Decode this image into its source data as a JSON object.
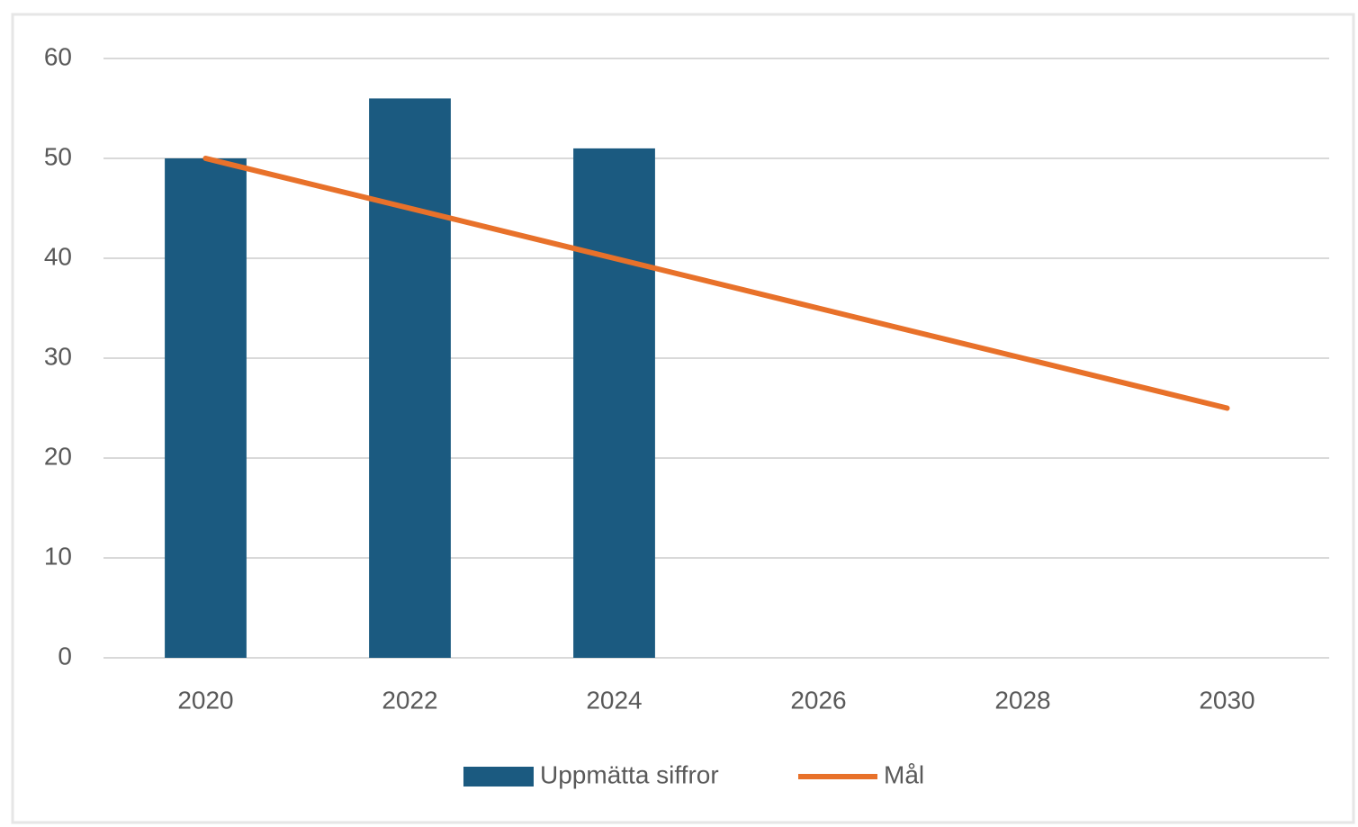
{
  "chart_data": {
    "type": "bar",
    "categories": [
      "2020",
      "2022",
      "2024",
      "2026",
      "2028",
      "2030"
    ],
    "series": [
      {
        "name": "Uppmätta siffror",
        "type": "bar",
        "color": "#1b5a80",
        "values": [
          50,
          56,
          51,
          null,
          null,
          null
        ]
      },
      {
        "name": "Mål",
        "type": "line",
        "color": "#e8712a",
        "values": [
          50,
          45,
          40,
          35,
          30,
          25
        ]
      }
    ],
    "ylim": [
      0,
      60
    ],
    "yticks": [
      0,
      10,
      20,
      30,
      40,
      50,
      60
    ],
    "grid": true,
    "legend": "bottom"
  }
}
